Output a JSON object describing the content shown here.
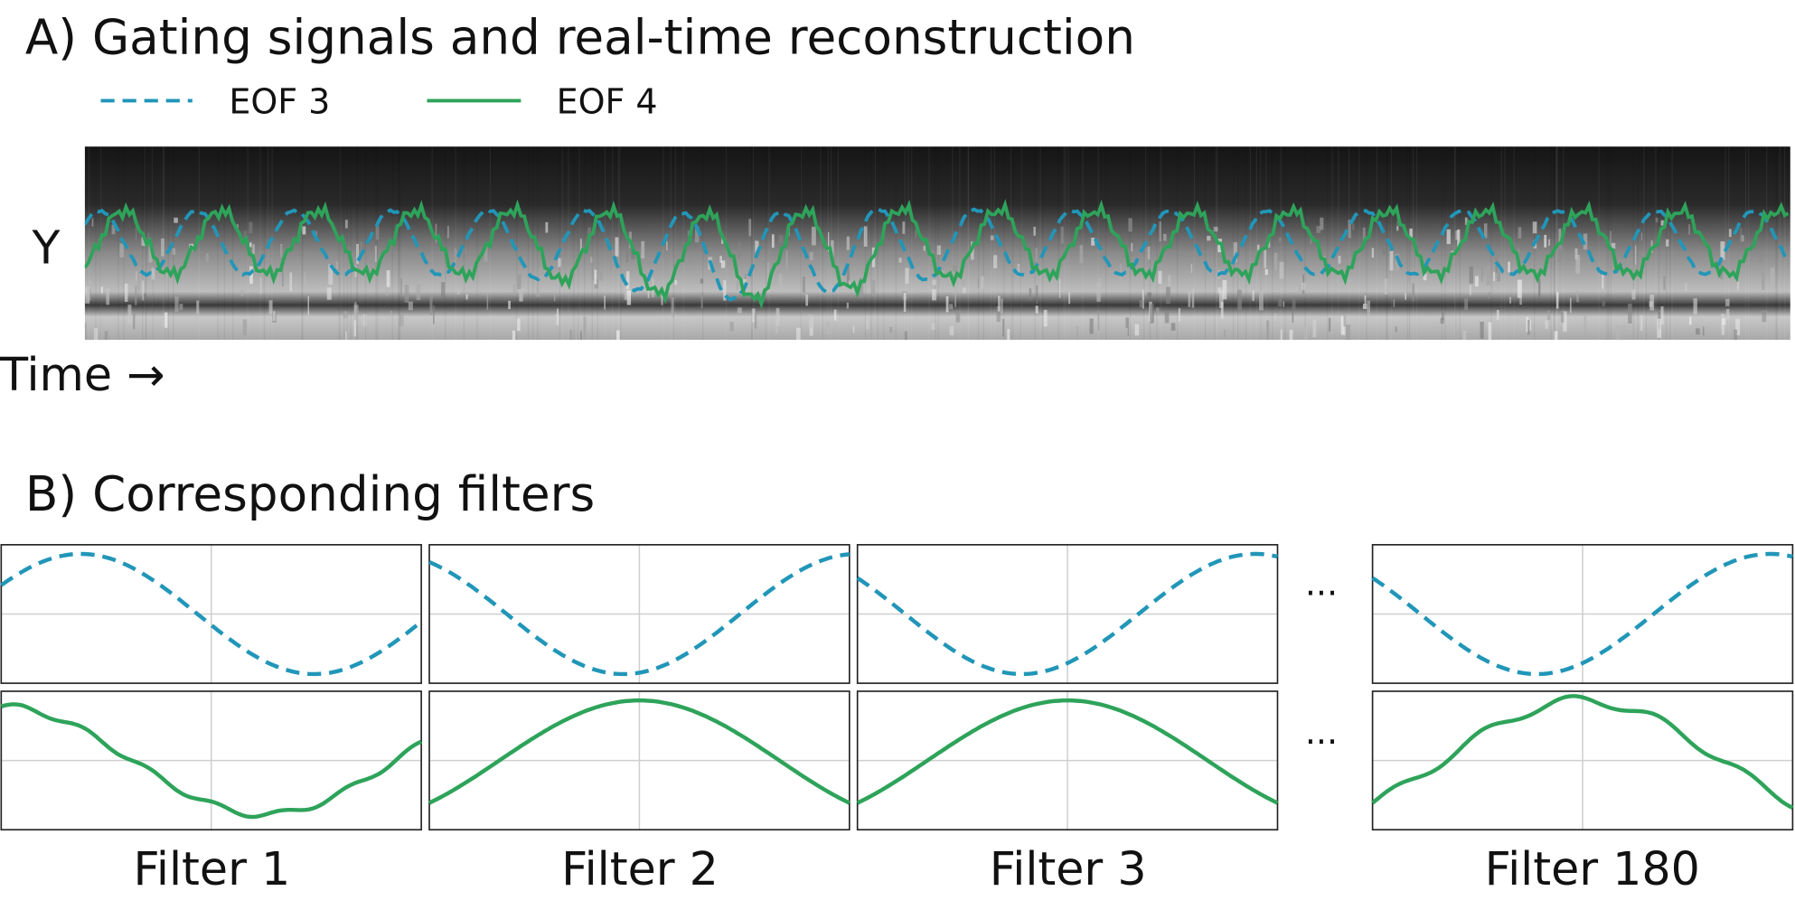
{
  "panel_a": {
    "title": "A) Gating signals and real-time reconstruction",
    "legend": [
      "EOF 3",
      "EOF 4"
    ],
    "y_label": "Y",
    "x_label": "Time →"
  },
  "panel_b": {
    "title": "B) Corresponding filters",
    "ellipsis": "...",
    "filters": [
      "Filter 1",
      "Filter 2",
      "Filter 3",
      "Filter 180"
    ]
  }
}
